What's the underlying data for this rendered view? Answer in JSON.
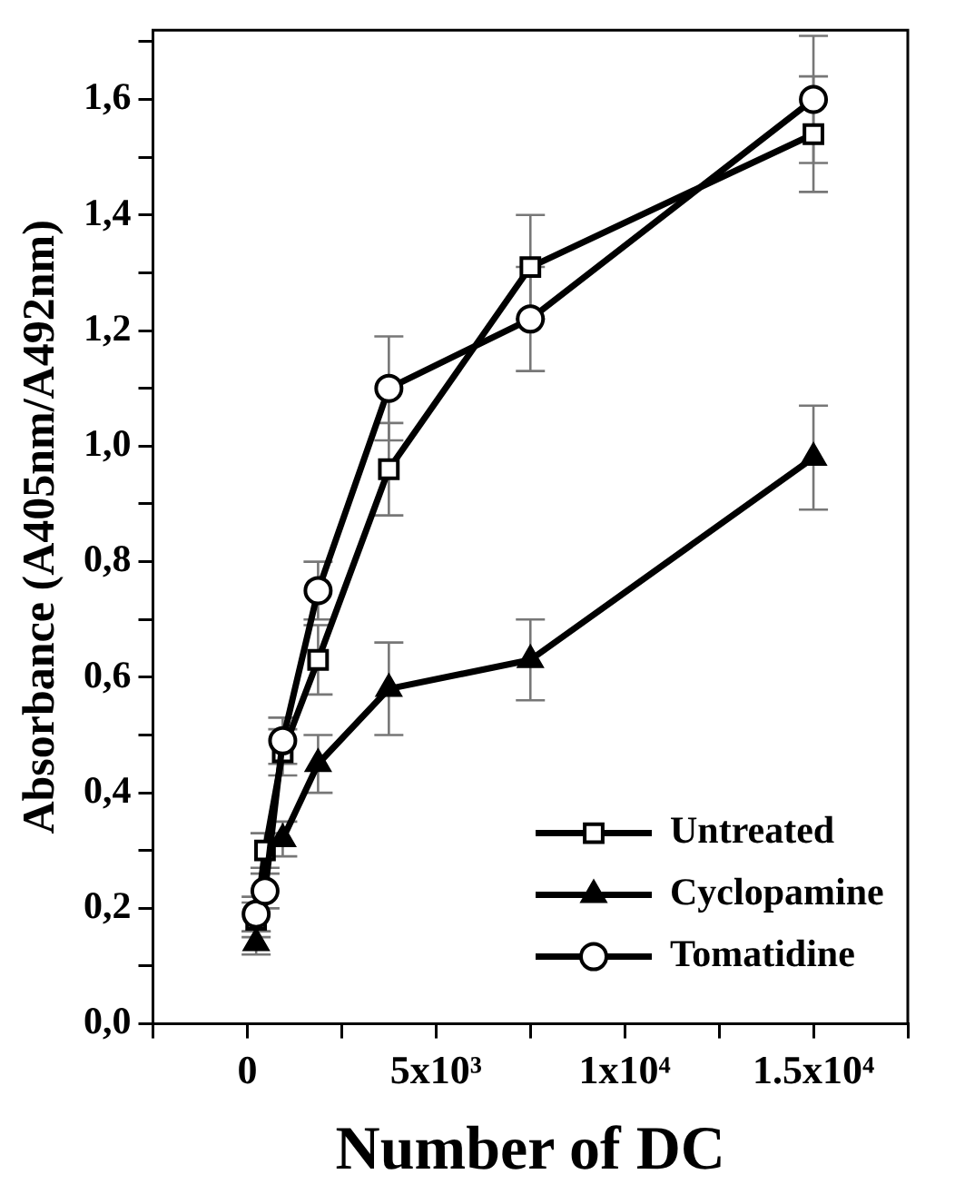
{
  "chart_data": {
    "type": "line",
    "xlabel": "Number of DC",
    "ylabel": "Absorbance (A405nm/A492nm)",
    "x": [
      234,
      469,
      938,
      1875,
      3750,
      7500,
      15000
    ],
    "series": [
      {
        "name": "Untreated",
        "color": "#000000",
        "marker": "square",
        "values": [
          0.18,
          0.3,
          0.47,
          0.63,
          0.96,
          1.31,
          1.54
        ],
        "errors": [
          0.03,
          0.03,
          0.04,
          0.06,
          0.08,
          0.09,
          0.1
        ]
      },
      {
        "name": "Cyclopamine",
        "color": "#000000",
        "marker": "triangle",
        "values": [
          0.14,
          null,
          0.32,
          0.45,
          0.58,
          0.63,
          0.98
        ],
        "errors": [
          0.02,
          null,
          0.03,
          0.05,
          0.08,
          0.07,
          0.09
        ]
      },
      {
        "name": "Tomatidine",
        "color": "#000000",
        "marker": "circle",
        "values": [
          0.19,
          0.23,
          0.49,
          0.75,
          1.1,
          1.22,
          1.6
        ],
        "errors": [
          0.03,
          0.03,
          0.04,
          0.05,
          0.09,
          0.09,
          0.11
        ]
      }
    ],
    "xlim": [
      -2500,
      17500
    ],
    "xticks": [
      {
        "value": -2500,
        "label": null
      },
      {
        "value": 0,
        "label": "0"
      },
      {
        "value": 2500,
        "label": null
      },
      {
        "value": 5000,
        "label": "5x10³"
      },
      {
        "value": 7500,
        "label": null
      },
      {
        "value": 10000,
        "label": "1x10⁴"
      },
      {
        "value": 12500,
        "label": null
      },
      {
        "value": 15000,
        "label": "1.5x10⁴"
      },
      {
        "value": 17500,
        "label": null
      }
    ],
    "ylim": [
      0,
      1.72
    ],
    "yticks": [
      {
        "value": 0,
        "label": "0,0"
      },
      {
        "value": 0.1,
        "label": null
      },
      {
        "value": 0.2,
        "label": "0,2"
      },
      {
        "value": 0.3,
        "label": null
      },
      {
        "value": 0.4,
        "label": "0,4"
      },
      {
        "value": 0.5,
        "label": null
      },
      {
        "value": 0.6,
        "label": "0,6"
      },
      {
        "value": 0.7,
        "label": null
      },
      {
        "value": 0.8,
        "label": "0,8"
      },
      {
        "value": 0.9,
        "label": null
      },
      {
        "value": 1.0,
        "label": "1,0"
      },
      {
        "value": 1.1,
        "label": null
      },
      {
        "value": 1.2,
        "label": "1,2"
      },
      {
        "value": 1.3,
        "label": null
      },
      {
        "value": 1.4,
        "label": "1,4"
      },
      {
        "value": 1.5,
        "label": null
      },
      {
        "value": 1.6,
        "label": "1,6"
      },
      {
        "value": 1.7,
        "label": null
      }
    ],
    "grid": false,
    "legend": "bottom right",
    "line_style": "solid"
  }
}
